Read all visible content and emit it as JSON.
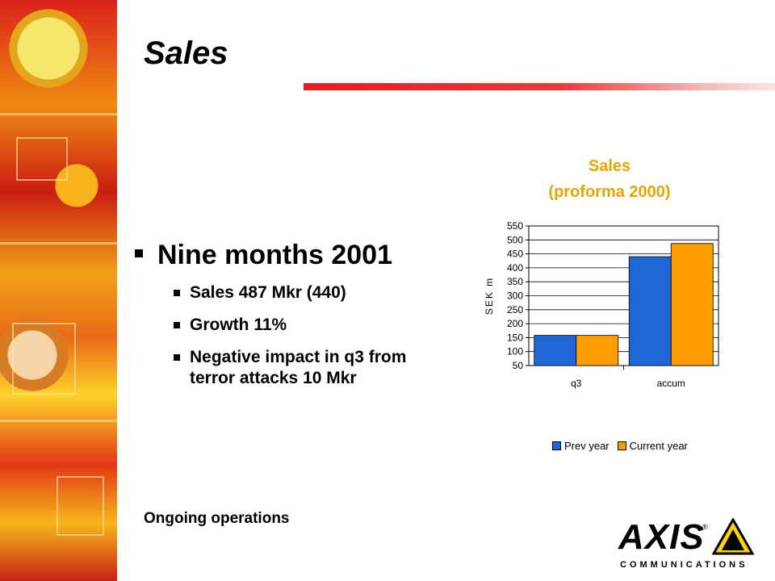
{
  "slide": {
    "title": "Sales",
    "bullet_main": "Nine months 2001",
    "sub_bullets": [
      "Sales 487 Mkr (440)",
      "Growth 11%",
      "Negative impact in q3 from terror attacks 10 Mkr"
    ],
    "footer_note": "Ongoing operations"
  },
  "logo": {
    "word": "AXIS",
    "registered": "®",
    "tagline": "COMMUNICATIONS"
  },
  "colors": {
    "accent_red": "#e41d1d",
    "chart_title": "#e8a400",
    "prev_year": "#1f66d6",
    "current_year": "#ff9c00"
  },
  "chart_data": {
    "type": "bar",
    "title": "Sales",
    "subtitle": "(proforma 2000)",
    "ylabel": "SEK m",
    "xlabel": "",
    "categories": [
      "q3",
      "accum"
    ],
    "series": [
      {
        "name": "Prev year",
        "values": [
          158,
          440
        ],
        "color": "#1f66d6"
      },
      {
        "name": "Current year",
        "values": [
          158,
          487
        ],
        "color": "#ff9c00"
      }
    ],
    "ylim": [
      50,
      550
    ],
    "yticks": [
      50,
      100,
      150,
      200,
      250,
      300,
      350,
      400,
      450,
      500,
      550
    ],
    "grid": "horizontal",
    "legend": "bottom"
  }
}
